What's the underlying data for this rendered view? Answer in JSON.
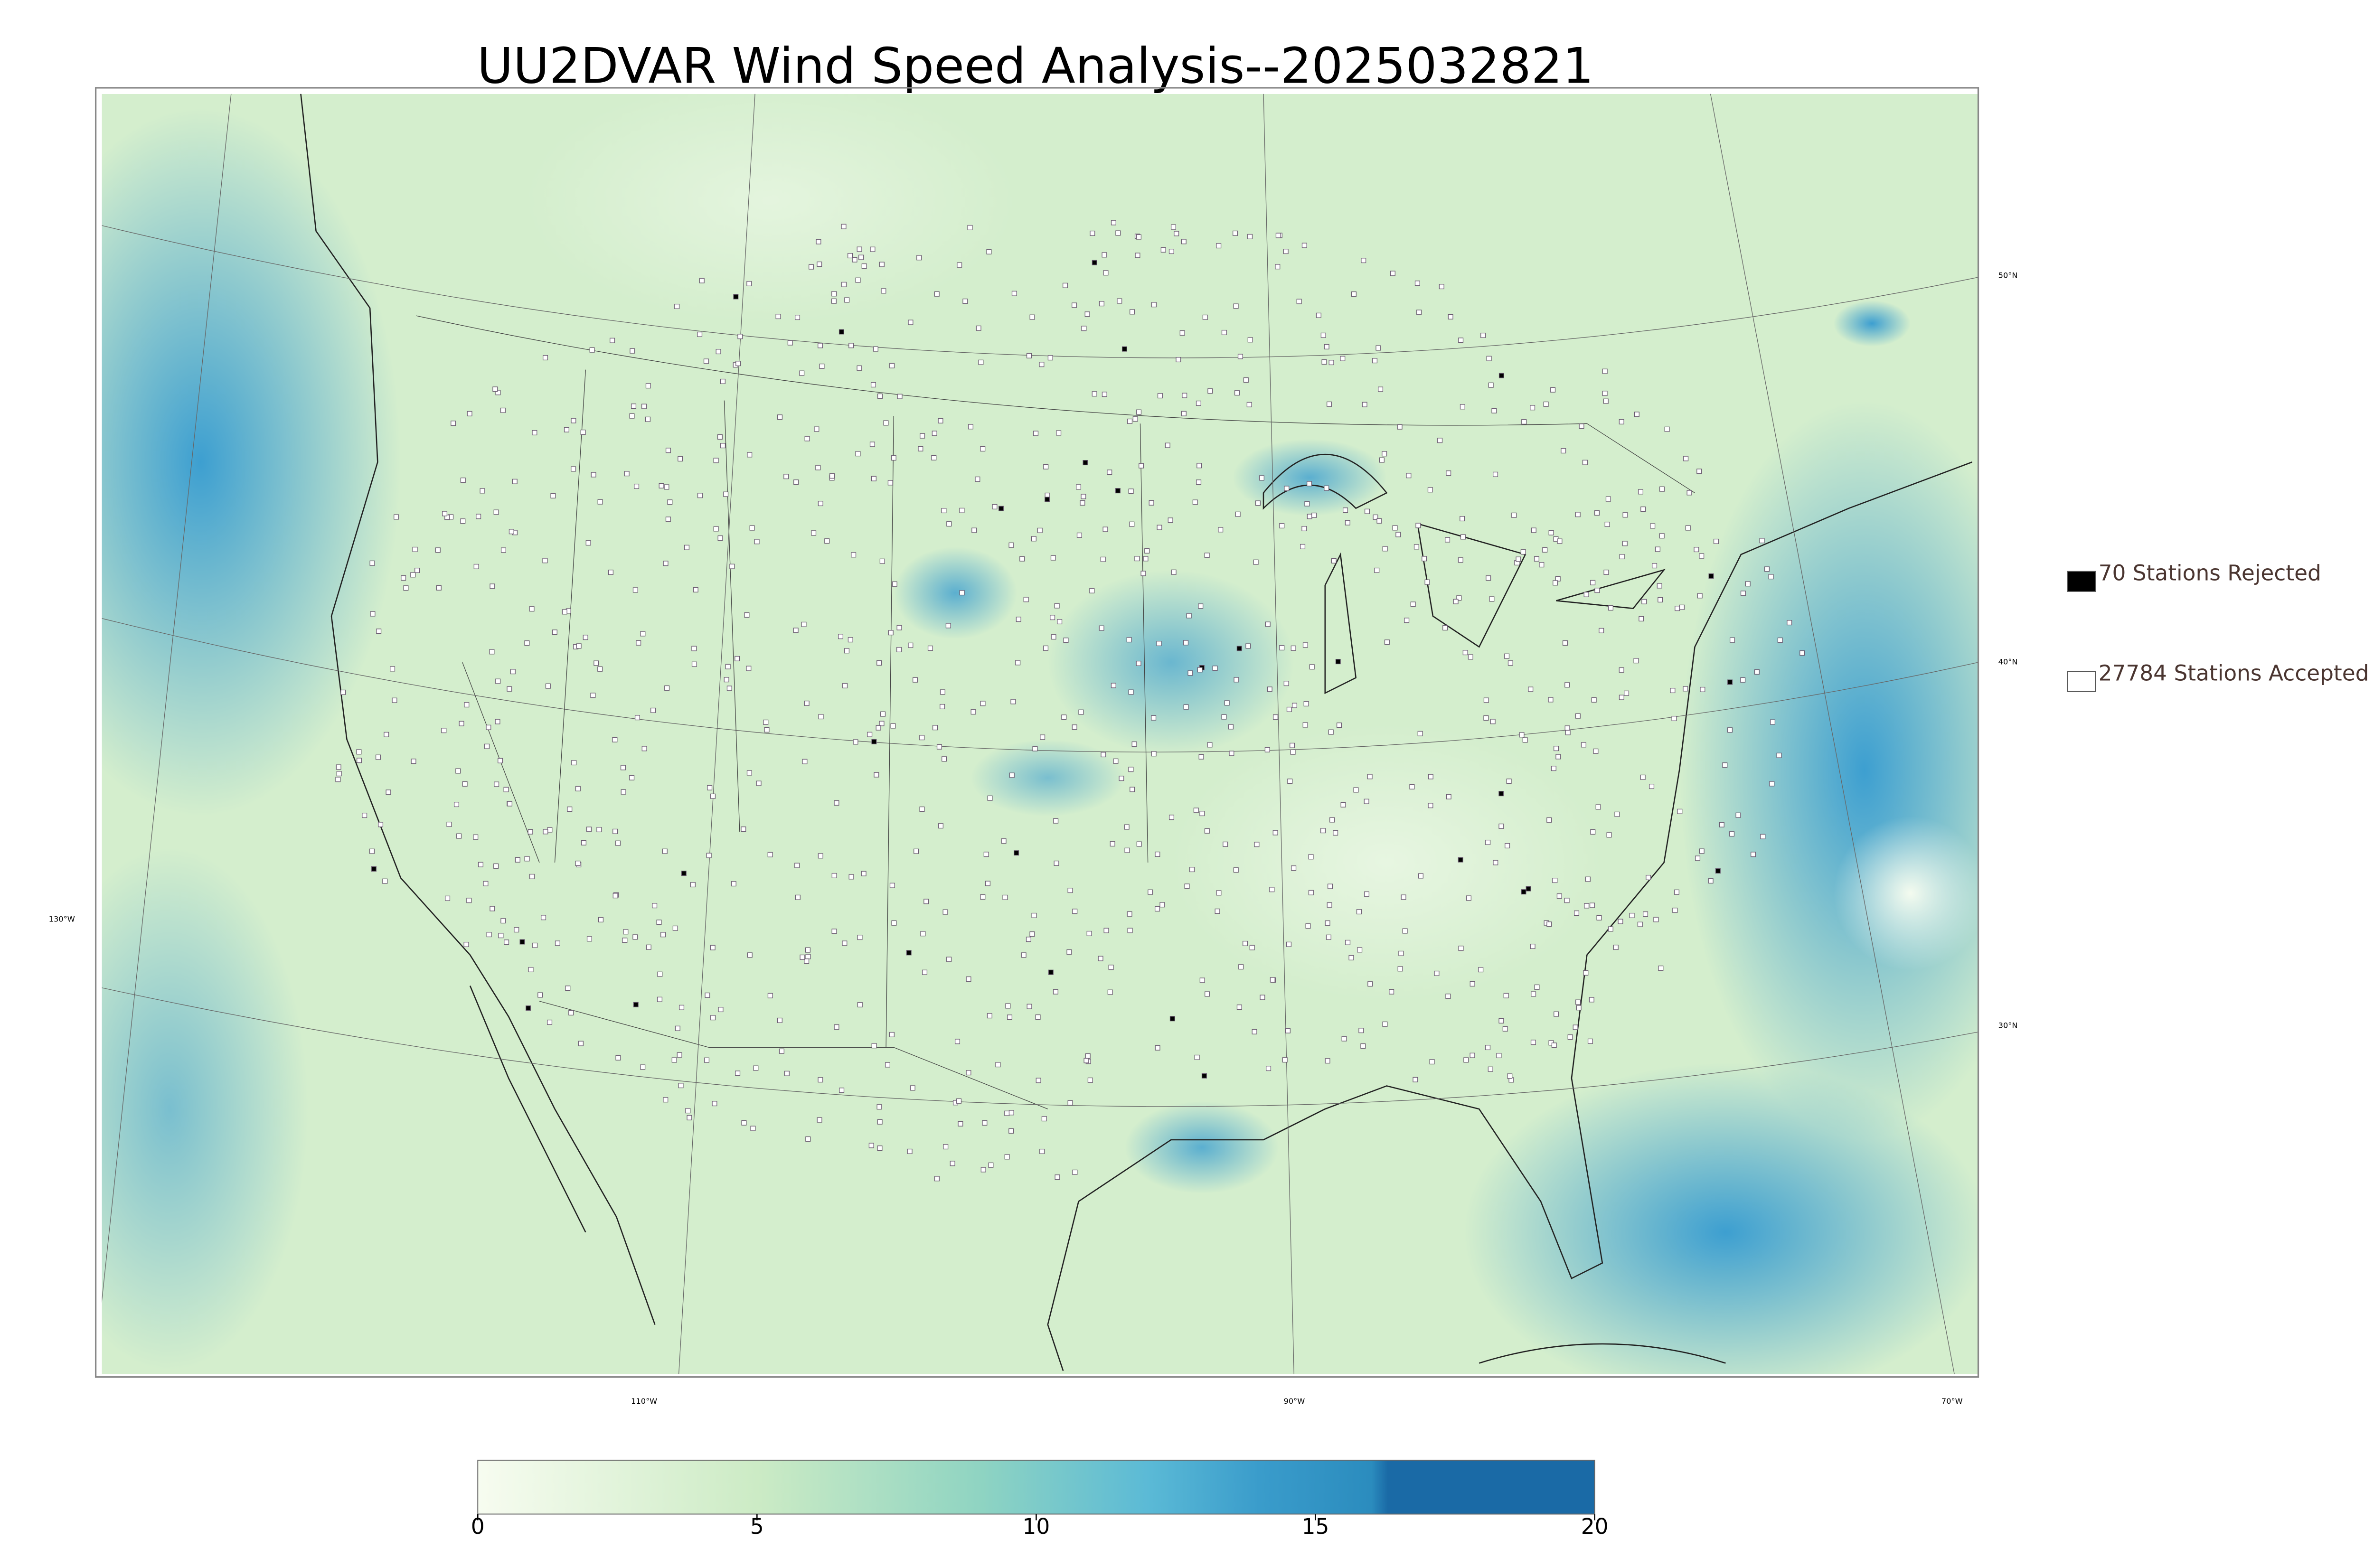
{
  "title": "UU2DVAR Wind Speed Analysis--2025032821",
  "legend": [
    {
      "label": "70 Stations Rejected",
      "fill": "#000000"
    },
    {
      "label": "27784 Stations Accepted",
      "fill": "#ffffff"
    }
  ],
  "graticule": {
    "lat_labels": [
      "50°N",
      "40°N",
      "30°N"
    ],
    "lon_labels": [
      "130°W",
      "110°W",
      "90°W",
      "70°W"
    ]
  },
  "colorbar": {
    "range": [
      0,
      20
    ],
    "ticks": [
      0,
      5,
      10,
      15,
      20
    ]
  }
}
